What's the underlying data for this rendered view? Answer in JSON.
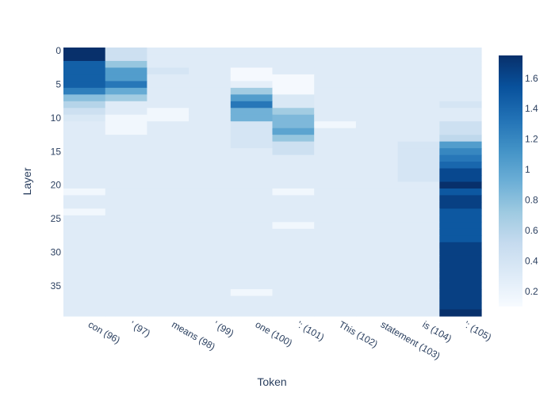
{
  "chart_data": {
    "type": "heatmap",
    "xlabel": "Token",
    "ylabel": "Layer",
    "x_categories": [
      "con (96)",
      "' (97)",
      "means (98)",
      "' (99)",
      "one (100)",
      "': (101)",
      "This (102)",
      "statement (103)",
      "is (104)",
      "': (105)"
    ],
    "y_ticks": [
      0,
      5,
      10,
      15,
      20,
      25,
      30,
      35
    ],
    "y_range": [
      0,
      39
    ],
    "colorbar": {
      "ticks": [
        0.2,
        0.4,
        0.6,
        0.8,
        1,
        1.2,
        1.4,
        1.6
      ],
      "tick_labels": [
        "0.2",
        "0.4",
        "0.6",
        "0.8",
        "1",
        "1.2",
        "1.4",
        "1.6"
      ],
      "zmin": 0.1,
      "zmax": 1.75,
      "colorscale": [
        "#f7fbff",
        "#deebf7",
        "#c6dbef",
        "#9ecae1",
        "#6baed6",
        "#4292c6",
        "#2171b5",
        "#08519c",
        "#08306b"
      ]
    },
    "background_value": 0.3,
    "values": [
      [
        1.75,
        0.45,
        0.3,
        0.3,
        0.3,
        0.3,
        0.3,
        0.3,
        0.3,
        0.3
      ],
      [
        1.75,
        0.45,
        0.3,
        0.3,
        0.3,
        0.3,
        0.3,
        0.3,
        0.3,
        0.3
      ],
      [
        1.45,
        0.75,
        0.3,
        0.3,
        0.3,
        0.3,
        0.3,
        0.3,
        0.3,
        0.3
      ],
      [
        1.45,
        1.05,
        0.38,
        0.3,
        0.12,
        0.3,
        0.3,
        0.3,
        0.3,
        0.3
      ],
      [
        1.45,
        1.05,
        0.3,
        0.3,
        0.12,
        0.12,
        0.3,
        0.3,
        0.3,
        0.3
      ],
      [
        1.45,
        1.3,
        0.3,
        0.3,
        0.25,
        0.12,
        0.3,
        0.3,
        0.3,
        0.3
      ],
      [
        1.25,
        0.95,
        0.3,
        0.3,
        0.7,
        0.12,
        0.3,
        0.3,
        0.3,
        0.3
      ],
      [
        0.8,
        0.7,
        0.3,
        0.3,
        1.05,
        0.35,
        0.3,
        0.3,
        0.3,
        0.3
      ],
      [
        0.6,
        0.3,
        0.3,
        0.3,
        1.3,
        0.35,
        0.3,
        0.3,
        0.3,
        0.38
      ],
      [
        0.45,
        0.3,
        0.15,
        0.3,
        0.9,
        0.7,
        0.3,
        0.3,
        0.3,
        0.3
      ],
      [
        0.35,
        0.15,
        0.15,
        0.3,
        0.9,
        0.85,
        0.3,
        0.3,
        0.3,
        0.3
      ],
      [
        0.3,
        0.15,
        0.3,
        0.3,
        0.38,
        0.85,
        0.15,
        0.3,
        0.3,
        0.45
      ],
      [
        0.3,
        0.15,
        0.3,
        0.3,
        0.38,
        1.0,
        0.3,
        0.3,
        0.3,
        0.45
      ],
      [
        0.3,
        0.3,
        0.3,
        0.3,
        0.38,
        0.75,
        0.3,
        0.3,
        0.3,
        0.55
      ],
      [
        0.3,
        0.3,
        0.3,
        0.3,
        0.38,
        0.45,
        0.3,
        0.3,
        0.38,
        1.05
      ],
      [
        0.3,
        0.3,
        0.3,
        0.3,
        0.3,
        0.45,
        0.3,
        0.3,
        0.38,
        1.2
      ],
      [
        0.3,
        0.3,
        0.3,
        0.3,
        0.3,
        0.3,
        0.3,
        0.3,
        0.38,
        1.3
      ],
      [
        0.3,
        0.3,
        0.3,
        0.3,
        0.3,
        0.3,
        0.3,
        0.3,
        0.38,
        1.4
      ],
      [
        0.3,
        0.3,
        0.3,
        0.3,
        0.3,
        0.3,
        0.3,
        0.3,
        0.38,
        1.6
      ],
      [
        0.3,
        0.3,
        0.3,
        0.3,
        0.3,
        0.3,
        0.3,
        0.3,
        0.38,
        1.6
      ],
      [
        0.3,
        0.3,
        0.3,
        0.3,
        0.3,
        0.3,
        0.3,
        0.3,
        0.3,
        1.75
      ],
      [
        0.15,
        0.3,
        0.3,
        0.3,
        0.3,
        0.15,
        0.3,
        0.3,
        0.3,
        1.5
      ],
      [
        0.3,
        0.3,
        0.3,
        0.3,
        0.3,
        0.3,
        0.3,
        0.3,
        0.3,
        1.65
      ],
      [
        0.3,
        0.3,
        0.3,
        0.3,
        0.3,
        0.3,
        0.3,
        0.3,
        0.3,
        1.65
      ],
      [
        0.15,
        0.3,
        0.3,
        0.3,
        0.3,
        0.3,
        0.3,
        0.3,
        0.3,
        1.5
      ],
      [
        0.3,
        0.3,
        0.3,
        0.3,
        0.3,
        0.3,
        0.3,
        0.3,
        0.3,
        1.5
      ],
      [
        0.3,
        0.3,
        0.3,
        0.3,
        0.3,
        0.15,
        0.3,
        0.3,
        0.3,
        1.5
      ],
      [
        0.3,
        0.3,
        0.3,
        0.3,
        0.3,
        0.3,
        0.3,
        0.3,
        0.3,
        1.5
      ],
      [
        0.3,
        0.3,
        0.3,
        0.3,
        0.3,
        0.3,
        0.3,
        0.3,
        0.3,
        1.5
      ],
      [
        0.3,
        0.3,
        0.3,
        0.3,
        0.3,
        0.3,
        0.3,
        0.3,
        0.3,
        1.65
      ],
      [
        0.3,
        0.3,
        0.3,
        0.3,
        0.3,
        0.3,
        0.3,
        0.3,
        0.3,
        1.65
      ],
      [
        0.3,
        0.3,
        0.3,
        0.3,
        0.3,
        0.3,
        0.3,
        0.3,
        0.3,
        1.65
      ],
      [
        0.3,
        0.3,
        0.3,
        0.3,
        0.3,
        0.3,
        0.3,
        0.3,
        0.3,
        1.65
      ],
      [
        0.3,
        0.3,
        0.3,
        0.3,
        0.3,
        0.3,
        0.3,
        0.3,
        0.3,
        1.65
      ],
      [
        0.3,
        0.3,
        0.3,
        0.3,
        0.3,
        0.3,
        0.3,
        0.3,
        0.3,
        1.65
      ],
      [
        0.3,
        0.3,
        0.3,
        0.3,
        0.3,
        0.3,
        0.3,
        0.3,
        0.3,
        1.65
      ],
      [
        0.3,
        0.3,
        0.3,
        0.3,
        0.15,
        0.3,
        0.3,
        0.3,
        0.3,
        1.65
      ],
      [
        0.3,
        0.3,
        0.3,
        0.3,
        0.3,
        0.3,
        0.3,
        0.3,
        0.3,
        1.65
      ],
      [
        0.3,
        0.3,
        0.3,
        0.3,
        0.3,
        0.3,
        0.3,
        0.3,
        0.3,
        1.65
      ],
      [
        0.3,
        0.3,
        0.3,
        0.3,
        0.3,
        0.3,
        0.3,
        0.3,
        0.3,
        1.75
      ]
    ]
  }
}
